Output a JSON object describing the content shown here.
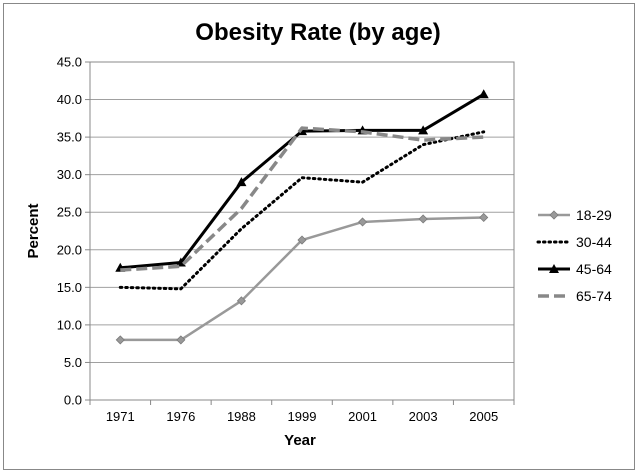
{
  "chart_data": {
    "type": "line",
    "title": "Obesity Rate (by age)",
    "xlabel": "Year",
    "ylabel": "Percent",
    "categories": [
      "1971",
      "1976",
      "1988",
      "1999",
      "2001",
      "2003",
      "2005"
    ],
    "ylim": [
      0,
      45
    ],
    "yticks": [
      "0.0",
      "5.0",
      "10.0",
      "15.0",
      "20.0",
      "25.0",
      "30.0",
      "35.0",
      "40.0",
      "45.0"
    ],
    "grid": true,
    "legend_position": "right",
    "series": [
      {
        "name": "18-29",
        "values": [
          8.0,
          8.0,
          13.2,
          21.3,
          23.7,
          24.1,
          24.3
        ],
        "color": "#999999",
        "style": "solid",
        "marker": "diamond"
      },
      {
        "name": "30-44",
        "values": [
          15.0,
          14.8,
          22.8,
          29.6,
          29.0,
          34.0,
          35.7
        ],
        "color": "#000000",
        "style": "dotted",
        "marker": "none"
      },
      {
        "name": "45-64",
        "values": [
          17.6,
          18.3,
          29.0,
          35.8,
          35.9,
          35.9,
          40.7
        ],
        "color": "#000000",
        "style": "solid",
        "marker": "triangle"
      },
      {
        "name": "65-74",
        "values": [
          17.3,
          17.8,
          25.5,
          36.2,
          35.7,
          34.6,
          35.0
        ],
        "color": "#888888",
        "style": "dashed",
        "marker": "none"
      }
    ]
  }
}
